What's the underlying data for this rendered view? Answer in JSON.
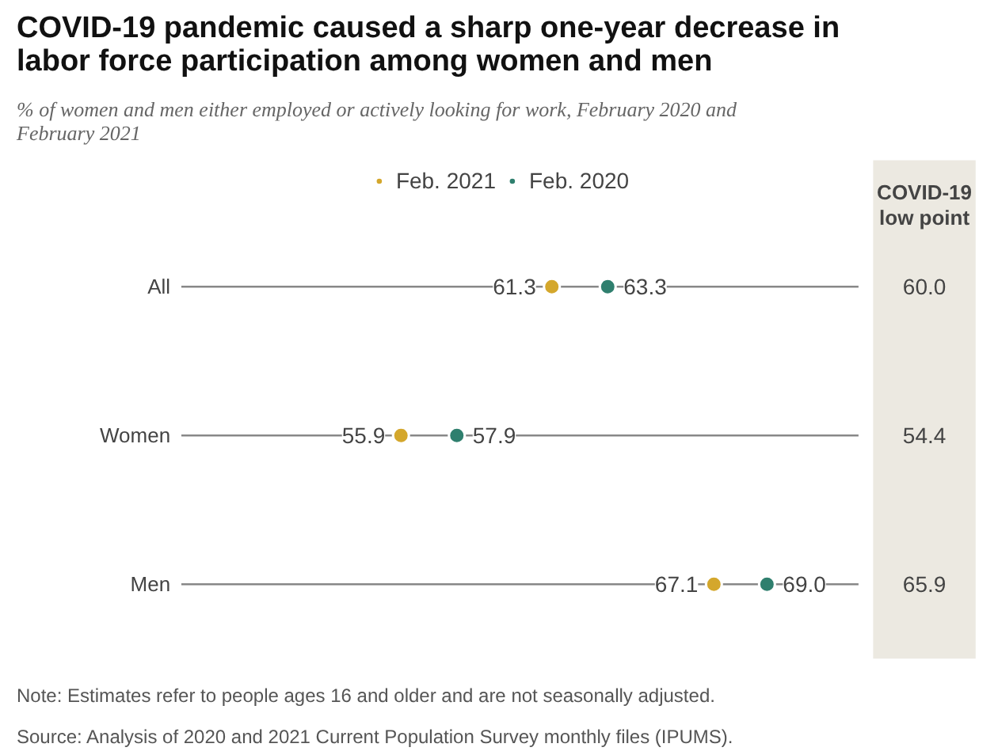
{
  "chart_data": {
    "type": "scatter",
    "orientation": "horizontal",
    "title": "COVID-19 pandemic caused a sharp one-year decrease in labor force participation among women and men",
    "subtitle": "% of women and men either employed or actively looking for work, February 2020 and February 2021",
    "categories": [
      "All",
      "Women",
      "Men"
    ],
    "series": [
      {
        "name": "Feb. 2021",
        "color": "#d4a72c",
        "values": [
          61.3,
          55.9,
          67.1
        ],
        "value_labels": [
          "61.3",
          "55.9",
          "67.1"
        ]
      },
      {
        "name": "Feb. 2020",
        "color": "#2f7f6e",
        "values": [
          63.3,
          57.9,
          69.0
        ],
        "value_labels": [
          "63.3",
          "57.9",
          "69.0"
        ]
      }
    ],
    "legend": "top",
    "grid": "y",
    "marker": "circle",
    "annotations": [
      "COVID-19 low point",
      "60.0",
      "54.4",
      "65.9",
      "Note: Estimates refer to people ages 16 and older and are not seasonally adjusted.",
      "Source: Analysis of 2020 and 2021 Current Population Survey monthly files (IPUMS)."
    ]
  }
}
